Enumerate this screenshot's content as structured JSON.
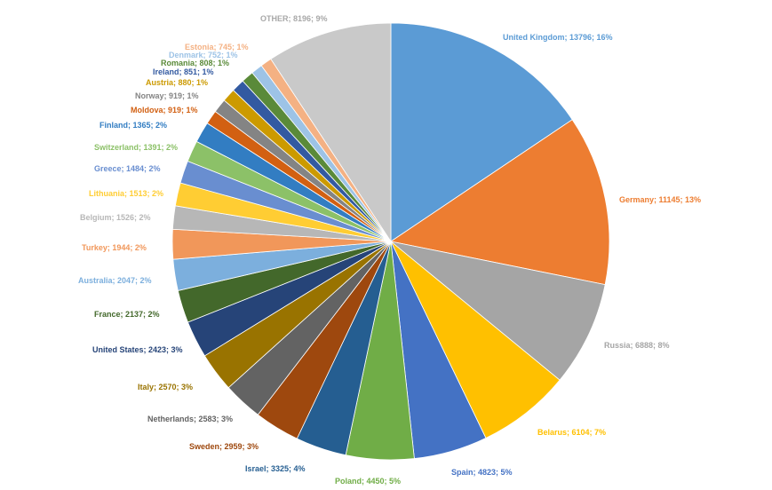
{
  "chart_data": {
    "type": "pie",
    "title": "",
    "legend": "none",
    "slices": [
      {
        "label": "United Kingdom",
        "value": 13796,
        "pct": "16%",
        "color": "#5b9bd5",
        "display": "United Kingdom; 13796; 16%"
      },
      {
        "label": "Germany",
        "value": 11145,
        "pct": "13%",
        "color": "#ed7d31",
        "display": "Germany; 11145; 13%"
      },
      {
        "label": "Russia",
        "value": 6888,
        "pct": "8%",
        "color": "#a5a5a5",
        "display": "Russia; 6888; 8%"
      },
      {
        "label": "Belarus",
        "value": 6104,
        "pct": "7%",
        "color": "#ffc000",
        "display": "Belarus; 6104; 7%"
      },
      {
        "label": "Spain",
        "value": 4823,
        "pct": "5%",
        "color": "#4472c4",
        "display": "Spain; 4823; 5%"
      },
      {
        "label": "Poland",
        "value": 4450,
        "pct": "5%",
        "color": "#70ad47",
        "display": "Poland; 4450; 5%"
      },
      {
        "label": "Israel",
        "value": 3325,
        "pct": "4%",
        "color": "#255e91",
        "display": "Israel; 3325; 4%"
      },
      {
        "label": "Sweden",
        "value": 2959,
        "pct": "3%",
        "color": "#9e480e",
        "display": "Sweden; 2959; 3%"
      },
      {
        "label": "Netherlands",
        "value": 2583,
        "pct": "3%",
        "color": "#636363",
        "display": "Netherlands; 2583; 3%"
      },
      {
        "label": "Italy",
        "value": 2570,
        "pct": "3%",
        "color": "#997300",
        "display": "Italy; 2570; 3%"
      },
      {
        "label": "United States",
        "value": 2423,
        "pct": "3%",
        "color": "#264478",
        "display": "United States; 2423; 3%"
      },
      {
        "label": "France",
        "value": 2137,
        "pct": "2%",
        "color": "#43682b",
        "display": "France; 2137; 2%"
      },
      {
        "label": "Australia",
        "value": 2047,
        "pct": "2%",
        "color": "#7cafdd",
        "display": "Australia; 2047; 2%"
      },
      {
        "label": "Turkey",
        "value": 1944,
        "pct": "2%",
        "color": "#f1975a",
        "display": "Turkey; 1944; 2%"
      },
      {
        "label": "Belgium",
        "value": 1526,
        "pct": "2%",
        "color": "#b7b7b7",
        "display": "Belgium; 1526; 2%"
      },
      {
        "label": "Lithuania",
        "value": 1513,
        "pct": "2%",
        "color": "#ffcd33",
        "display": "Lithuania; 1513; 2%"
      },
      {
        "label": "Greece",
        "value": 1484,
        "pct": "2%",
        "color": "#698ed0",
        "display": "Greece; 1484; 2%"
      },
      {
        "label": "Switzerland",
        "value": 1391,
        "pct": "2%",
        "color": "#8cc168",
        "display": "Switzerland; 1391; 2%"
      },
      {
        "label": "Finland",
        "value": 1365,
        "pct": "2%",
        "color": "#327dc2",
        "display": "Finland; 1365; 2%"
      },
      {
        "label": "Moldova",
        "value": 919,
        "pct": "1%",
        "color": "#d26012",
        "display": "Moldova; 919; 1%"
      },
      {
        "label": "Norway",
        "value": 919,
        "pct": "1%",
        "color": "#848484",
        "display": "Norway; 919; 1%"
      },
      {
        "label": "Austria",
        "value": 880,
        "pct": "1%",
        "color": "#cc9a00",
        "display": "Austria; 880; 1%"
      },
      {
        "label": "Ireland",
        "value": 851,
        "pct": "1%",
        "color": "#335aa1",
        "display": "Ireland; 851; 1%"
      },
      {
        "label": "Romania",
        "value": 808,
        "pct": "1%",
        "color": "#5a8a39",
        "display": "Romania; 808; 1%"
      },
      {
        "label": "Denmark",
        "value": 752,
        "pct": "1%",
        "color": "#9dc3e6",
        "display": "Denmark; 752; 1%"
      },
      {
        "label": "Estonia",
        "value": 745,
        "pct": "1%",
        "color": "#f4b183",
        "display": "Estonia; 745; 1%"
      },
      {
        "label": "OTHER",
        "value": 8196,
        "pct": "9%",
        "color": "#c9c9c9",
        "display": "OTHER; 8196; 9%"
      }
    ]
  }
}
